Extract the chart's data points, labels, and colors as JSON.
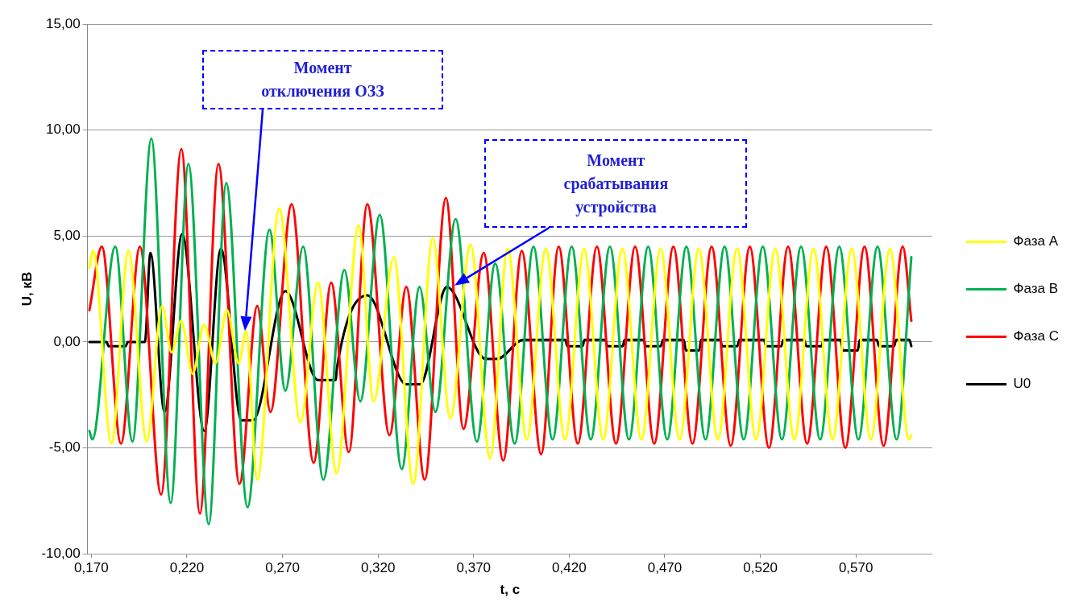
{
  "chart_data": {
    "type": "line",
    "xlabel": "t, c",
    "ylabel": "U, кВ",
    "xlim": [
      0.168,
      0.61
    ],
    "ylim": [
      -10,
      15
    ],
    "xticks": [
      {
        "value": 0.17,
        "label": "0,170"
      },
      {
        "value": 0.22,
        "label": "0,220"
      },
      {
        "value": 0.27,
        "label": "0,270"
      },
      {
        "value": 0.32,
        "label": "0,320"
      },
      {
        "value": 0.37,
        "label": "0,370"
      },
      {
        "value": 0.42,
        "label": "0,420"
      },
      {
        "value": 0.47,
        "label": "0,470"
      },
      {
        "value": 0.52,
        "label": "0,520"
      },
      {
        "value": 0.57,
        "label": "0,570"
      }
    ],
    "yticks": [
      {
        "value": -10,
        "label": "-10,00"
      },
      {
        "value": -5,
        "label": "-5,00"
      },
      {
        "value": 0,
        "label": "0,00"
      },
      {
        "value": 5,
        "label": "5,00"
      },
      {
        "value": 10,
        "label": "10,00"
      },
      {
        "value": 15,
        "label": "15,00"
      }
    ],
    "grid": "y",
    "legend": "right",
    "marker": "none",
    "annotations": [
      "Момент отключения ОЗЗ",
      "Момент срабатывания устройства"
    ],
    "series": [
      {
        "name": "Фаза A",
        "color": "#ffff00",
        "x": [
          0.169,
          0.171,
          0.1805,
          0.1894,
          0.199,
          0.207,
          0.212,
          0.217,
          0.223,
          0.229,
          0.235,
          0.241,
          0.247,
          0.251,
          0.2568,
          0.2683,
          0.2794,
          0.2886,
          0.2983,
          0.3098,
          0.3177,
          0.3283,
          0.3384,
          0.3486,
          0.3578,
          0.3684,
          0.3786,
          0.3878,
          0.3978,
          0.4078,
          0.4178,
          0.4278,
          0.4378,
          0.4478,
          0.4578,
          0.4678,
          0.4778,
          0.4878,
          0.4978,
          0.5078,
          0.5178,
          0.5278,
          0.5378,
          0.5478,
          0.5578,
          0.5678,
          0.5778,
          0.5878,
          0.5978,
          0.599
        ],
        "values": [
          3.5,
          4.3,
          -4.8,
          4.3,
          -4.7,
          1.7,
          -0.5,
          1.0,
          -1.5,
          0.8,
          -1.0,
          1.5,
          -1.0,
          0.5,
          -6.5,
          6.3,
          -3.8,
          2.8,
          -6.2,
          5.5,
          -2.8,
          4.0,
          -6.7,
          4.9,
          -3.6,
          4.6,
          -5.5,
          4.4,
          -4.6,
          4.4,
          -4.6,
          4.4,
          -4.6,
          4.4,
          -4.6,
          4.4,
          -4.6,
          4.4,
          -4.6,
          4.4,
          -4.6,
          4.4,
          -4.6,
          4.4,
          -4.6,
          4.4,
          -4.6,
          4.4,
          -4.6,
          -4.4
        ]
      },
      {
        "name": "Фаза B",
        "color": "#00b050",
        "x": [
          0.169,
          0.1705,
          0.1825,
          0.1915,
          0.2014,
          0.2115,
          0.2208,
          0.2314,
          0.2406,
          0.2517,
          0.2632,
          0.2715,
          0.2808,
          0.2914,
          0.3024,
          0.3107,
          0.3209,
          0.3324,
          0.3417,
          0.35,
          0.3606,
          0.3717,
          0.3813,
          0.3915,
          0.4013,
          0.4113,
          0.4213,
          0.4313,
          0.4413,
          0.4513,
          0.4613,
          0.4713,
          0.4813,
          0.4913,
          0.5013,
          0.5113,
          0.5213,
          0.5313,
          0.5413,
          0.5513,
          0.5613,
          0.5713,
          0.5813,
          0.5913,
          0.599
        ],
        "values": [
          -4.2,
          -4.6,
          4.5,
          -4.7,
          9.6,
          -7.6,
          8.4,
          -8.6,
          7.5,
          -7.8,
          5.3,
          -2.3,
          4.5,
          -6.5,
          3.4,
          -2.8,
          6.0,
          -6.0,
          2.6,
          -3.3,
          5.8,
          -4.7,
          3.7,
          -4.8,
          4.5,
          -4.6,
          4.5,
          -4.6,
          4.5,
          -4.6,
          4.5,
          -4.6,
          4.5,
          -4.6,
          4.5,
          -4.6,
          4.5,
          -4.6,
          4.5,
          -4.6,
          4.5,
          -4.6,
          4.5,
          -4.6,
          4.0
        ]
      },
      {
        "name": "Фаза C",
        "color": "#ff0000",
        "x": [
          0.169,
          0.1755,
          0.1855,
          0.1954,
          0.2065,
          0.2171,
          0.2268,
          0.2365,
          0.2475,
          0.2568,
          0.2637,
          0.2748,
          0.2863,
          0.2955,
          0.3047,
          0.3144,
          0.326,
          0.3348,
          0.3444,
          0.3555,
          0.3647,
          0.3753,
          0.3855,
          0.3952,
          0.4053,
          0.4145,
          0.4245,
          0.4345,
          0.4445,
          0.4545,
          0.4645,
          0.4745,
          0.4845,
          0.4945,
          0.5045,
          0.5145,
          0.5245,
          0.5345,
          0.5445,
          0.5545,
          0.5645,
          0.5745,
          0.5845,
          0.5945,
          0.599
        ],
        "values": [
          1.5,
          4.5,
          -4.8,
          4.5,
          -7.2,
          9.1,
          -8.1,
          8.4,
          -6.7,
          1.7,
          -3.3,
          6.5,
          -5.7,
          2.8,
          -5.2,
          6.5,
          -4.4,
          2.6,
          -6.5,
          6.8,
          -4.1,
          4.2,
          -5.6,
          4.3,
          -5.3,
          4.5,
          -4.8,
          4.5,
          -4.8,
          4.5,
          -4.8,
          4.5,
          -4.8,
          4.5,
          -4.9,
          4.5,
          -5.0,
          4.5,
          -4.8,
          4.5,
          -5.0,
          4.5,
          -4.9,
          4.5,
          1.0
        ]
      },
      {
        "name": "U0",
        "color": "#000000",
        "x": [
          0.169,
          0.178,
          0.179,
          0.188,
          0.189,
          0.198,
          0.2009,
          0.2083,
          0.2175,
          0.2291,
          0.2378,
          0.2485,
          0.2545,
          0.2715,
          0.2886,
          0.2978,
          0.2985,
          0.3144,
          0.3348,
          0.342,
          0.356,
          0.3763,
          0.3823,
          0.396,
          0.418,
          0.419,
          0.427,
          0.428,
          0.439,
          0.44,
          0.448,
          0.449,
          0.459,
          0.46,
          0.468,
          0.469,
          0.48,
          0.481,
          0.488,
          0.489,
          0.499,
          0.5,
          0.508,
          0.509,
          0.522,
          0.523,
          0.531,
          0.532,
          0.543,
          0.544,
          0.552,
          0.553,
          0.562,
          0.563,
          0.571,
          0.572,
          0.581,
          0.582,
          0.59,
          0.591,
          0.598,
          0.599
        ],
        "values": [
          0,
          0,
          -0.2,
          -0.2,
          0,
          0,
          4.2,
          -3.3,
          5.1,
          -4.2,
          4.4,
          -3.7,
          -3.7,
          2.4,
          -1.8,
          -1.8,
          -1.2,
          2.2,
          -2.0,
          -2.0,
          2.6,
          -0.8,
          -0.8,
          0.1,
          0.1,
          -0.2,
          -0.2,
          0.1,
          0.1,
          -0.2,
          -0.2,
          0.1,
          0.1,
          -0.2,
          -0.2,
          0.1,
          0.1,
          -0.4,
          -0.4,
          0.1,
          0.1,
          -0.2,
          -0.2,
          0.1,
          0.1,
          -0.2,
          -0.2,
          0.1,
          0.1,
          -0.2,
          -0.2,
          0.1,
          0.1,
          -0.4,
          -0.4,
          0.1,
          0.1,
          -0.2,
          -0.2,
          0.1,
          0.1,
          -0.2
        ]
      }
    ]
  }
}
